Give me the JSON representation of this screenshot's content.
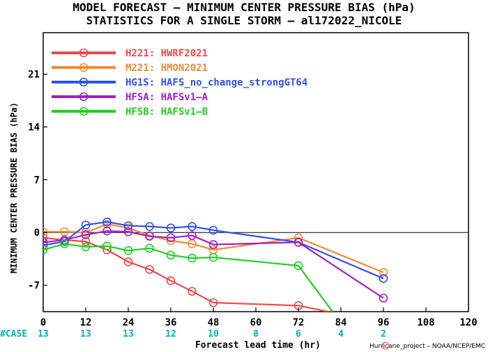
{
  "chart_data": {
    "type": "line",
    "title_line1": "MODEL FORECAST – MINIMUM CENTER PRESSURE BIAS (hPa)",
    "title_line2": "STATISTICS FOR A SINGLE STORM – al172022_NICOLE",
    "xlabel": "Forecast lead time (hr)",
    "ylabel": "MINIMUM CENTER PRESSURE BIAS (hPa)",
    "xlim": [
      0,
      120
    ],
    "ylim": [
      -10.5,
      26.5
    ],
    "xticks": [
      0,
      12,
      24,
      36,
      48,
      60,
      72,
      84,
      96,
      108,
      120
    ],
    "yticks": [
      -7,
      0,
      7,
      14,
      21
    ],
    "zero_line": true,
    "case_label": "#CASE",
    "case_counts": [
      {
        "x": 0,
        "label": "13"
      },
      {
        "x": 12,
        "label": "13"
      },
      {
        "x": 24,
        "label": "13"
      },
      {
        "x": 36,
        "label": "12"
      },
      {
        "x": 48,
        "label": "10"
      },
      {
        "x": 60,
        "label": "8"
      },
      {
        "x": 72,
        "label": "6"
      },
      {
        "x": 84,
        "label": "4"
      },
      {
        "x": 96,
        "label": "2"
      }
    ],
    "legend_position": "top-left",
    "series": [
      {
        "name": "H221: HWRF2021",
        "color": "#f04848",
        "points": [
          [
            0,
            -0.7
          ],
          [
            6,
            -1.0
          ],
          [
            12,
            -1.2
          ],
          [
            18,
            -2.3
          ],
          [
            24,
            -3.9
          ],
          [
            30,
            -4.9
          ],
          [
            36,
            -6.4
          ],
          [
            42,
            -7.8
          ],
          [
            48,
            -9.3
          ],
          [
            72,
            -9.7
          ],
          [
            96,
            -12.0
          ]
        ]
      },
      {
        "name": "M221: HMON2021",
        "color": "#f08c30",
        "points": [
          [
            0,
            0.1
          ],
          [
            6,
            0.1
          ],
          [
            12,
            0.0
          ],
          [
            18,
            1.1
          ],
          [
            24,
            0.6
          ],
          [
            30,
            -0.4
          ],
          [
            36,
            -1.1
          ],
          [
            42,
            -1.5
          ],
          [
            48,
            -2.3
          ],
          [
            72,
            -0.7
          ],
          [
            96,
            -5.3
          ]
        ]
      },
      {
        "name": "HG1S: HAFS_no_change_strongGT64",
        "color": "#3050f0",
        "points": [
          [
            0,
            -1.7
          ],
          [
            6,
            -1.2
          ],
          [
            12,
            1.0
          ],
          [
            18,
            1.4
          ],
          [
            24,
            0.9
          ],
          [
            30,
            0.8
          ],
          [
            36,
            0.6
          ],
          [
            42,
            0.8
          ],
          [
            48,
            0.3
          ],
          [
            72,
            -1.3
          ],
          [
            96,
            -6.1
          ]
        ]
      },
      {
        "name": "HFSA: HAFSv1–A",
        "color": "#a020c8",
        "points": [
          [
            0,
            -1.3
          ],
          [
            6,
            -1.0
          ],
          [
            12,
            -0.3
          ],
          [
            18,
            0.2
          ],
          [
            24,
            0.1
          ],
          [
            30,
            -0.5
          ],
          [
            36,
            -0.7
          ],
          [
            42,
            -0.4
          ],
          [
            48,
            -1.6
          ],
          [
            72,
            -1.3
          ],
          [
            96,
            -8.7
          ]
        ]
      },
      {
        "name": "HFSB: HAFSv1–B",
        "color": "#20d020",
        "points": [
          [
            0,
            -2.3
          ],
          [
            6,
            -1.5
          ],
          [
            12,
            -1.9
          ],
          [
            18,
            -1.8
          ],
          [
            24,
            -2.4
          ],
          [
            30,
            -2.1
          ],
          [
            36,
            -3.0
          ],
          [
            42,
            -3.4
          ],
          [
            48,
            -3.3
          ],
          [
            72,
            -4.4
          ],
          [
            84,
            -12.0
          ]
        ]
      }
    ],
    "credit": "Hurricane_project – NOAA/NCEP/EMC"
  }
}
